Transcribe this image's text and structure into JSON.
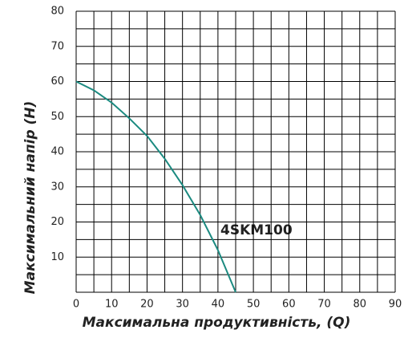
{
  "chart_data": {
    "type": "line",
    "xlabel": "Максимальна продуктивність, (Q)",
    "ylabel": "Максимальний напір (H)",
    "annotation": "4SKM100",
    "x": [
      0,
      5,
      10,
      15,
      20,
      25,
      30,
      35,
      40,
      45
    ],
    "series": [
      {
        "name": "4SKM100",
        "color": "#1b8a80",
        "values": [
          60,
          57.5,
          54,
          49.5,
          44.5,
          38,
          30.5,
          22,
          12,
          0
        ]
      }
    ],
    "xlim": [
      0,
      90
    ],
    "ylim": [
      0,
      80
    ],
    "xticks": [
      0,
      10,
      20,
      30,
      40,
      50,
      60,
      70,
      80,
      90
    ],
    "yticks": [
      10,
      20,
      30,
      40,
      50,
      60,
      70,
      80
    ],
    "xgrid": [
      0,
      5,
      10,
      15,
      20,
      25,
      30,
      35,
      40,
      45,
      50,
      55,
      60,
      65,
      70,
      75,
      80,
      85,
      90
    ],
    "ygrid": [
      0,
      5,
      10,
      15,
      20,
      25,
      30,
      35,
      40,
      45,
      50,
      55,
      60,
      65,
      70,
      75,
      80
    ],
    "grid": true
  }
}
